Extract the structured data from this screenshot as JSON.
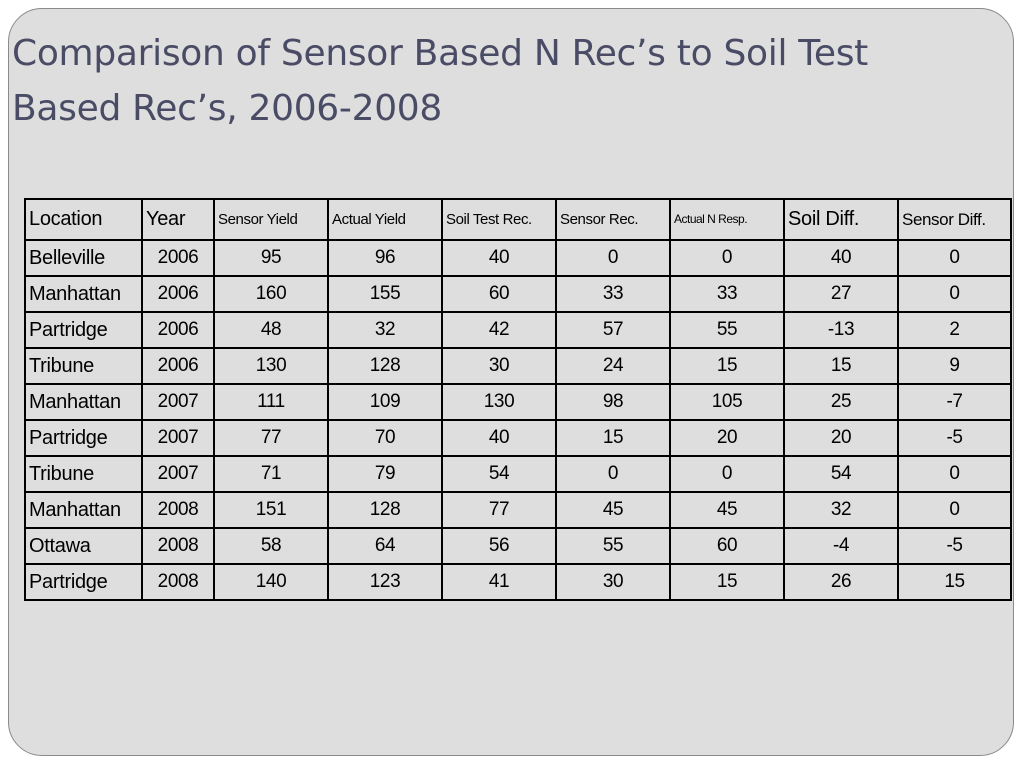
{
  "slide": {
    "title_line1": "Comparison of Sensor Based N Rec’s to Soil Test",
    "title_line2": "Based Rec’s, 2006-2008"
  },
  "table": {
    "headers": [
      "Location",
      "Year",
      "Sensor Yield",
      "Actual Yield",
      "Soil Test Rec.",
      "Sensor Rec.",
      "Actual N Resp.",
      "Soil Diff.",
      "Sensor Diff."
    ],
    "rows": [
      [
        "Belleville",
        "2006",
        "95",
        "96",
        "40",
        "0",
        "0",
        "40",
        "0"
      ],
      [
        "Manhattan",
        "2006",
        "160",
        "155",
        "60",
        "33",
        "33",
        "27",
        "0"
      ],
      [
        "Partridge",
        "2006",
        "48",
        "32",
        "42",
        "57",
        "55",
        "-13",
        "2"
      ],
      [
        "Tribune",
        "2006",
        "130",
        "128",
        "30",
        "24",
        "15",
        "15",
        "9"
      ],
      [
        "Manhattan",
        "2007",
        "111",
        "109",
        "130",
        "98",
        "105",
        "25",
        "-7"
      ],
      [
        "Partridge",
        "2007",
        "77",
        "70",
        "40",
        "15",
        "20",
        "20",
        "-5"
      ],
      [
        "Tribune",
        "2007",
        "71",
        "79",
        "54",
        "0",
        "0",
        "54",
        "0"
      ],
      [
        "Manhattan",
        "2008",
        "151",
        "128",
        "77",
        "45",
        "45",
        "32",
        "0"
      ],
      [
        "Ottawa",
        "2008",
        "58",
        "64",
        "56",
        "55",
        "60",
        "-4",
        "-5"
      ],
      [
        "Partridge",
        "2008",
        "140",
        "123",
        "41",
        "30",
        "15",
        "26",
        "15"
      ]
    ]
  }
}
